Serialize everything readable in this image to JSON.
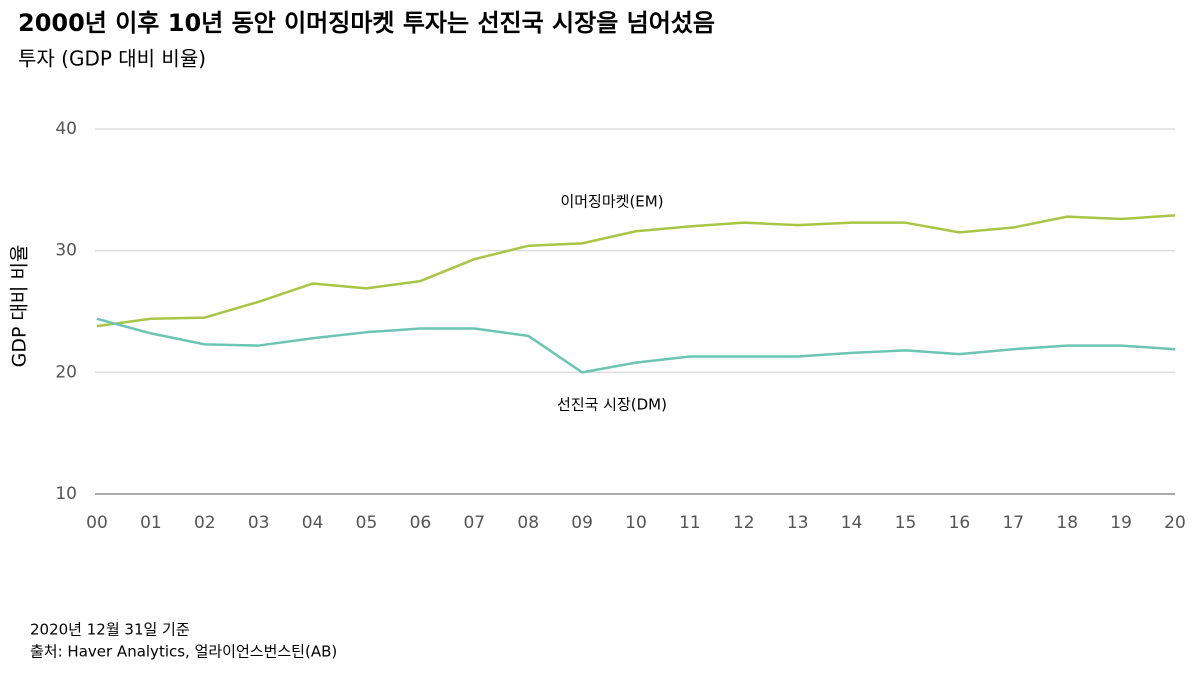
{
  "chart_data": {
    "type": "line",
    "title": "2000년 이후 10년 동안 이머징마켓 투자는 선진국 시장을 넘어섰음",
    "subtitle": "투자 (GDP 대비 비율)",
    "y_label": "GDP 대비 비율",
    "categories": [
      "00",
      "01",
      "02",
      "03",
      "04",
      "05",
      "06",
      "07",
      "08",
      "09",
      "10",
      "11",
      "12",
      "13",
      "14",
      "15",
      "16",
      "17",
      "18",
      "19",
      "20"
    ],
    "series": [
      {
        "name": "이머징마켓(EM)",
        "color": "#a8c545",
        "values": [
          23.8,
          24.4,
          24.5,
          25.8,
          27.3,
          26.9,
          27.5,
          29.3,
          30.4,
          30.6,
          31.6,
          32.0,
          32.3,
          32.1,
          32.3,
          32.3,
          31.5,
          31.9,
          32.8,
          32.6,
          32.9
        ]
      },
      {
        "name": "선진국 시장(DM)",
        "color": "#6cc4b5",
        "values": [
          24.4,
          23.2,
          22.3,
          22.2,
          22.8,
          23.3,
          23.6,
          23.6,
          23.0,
          20.0,
          20.8,
          21.3,
          21.3,
          21.3,
          21.6,
          21.8,
          21.5,
          21.9,
          22.2,
          22.2,
          21.9
        ]
      }
    ],
    "ylim": [
      10,
      40
    ],
    "yticks": [
      10,
      20,
      30,
      40
    ],
    "grid": true,
    "note": "2020년 12월 31일 기준",
    "source": "출처: Haver Analytics, 얼라이언스번스틴(AB)"
  }
}
